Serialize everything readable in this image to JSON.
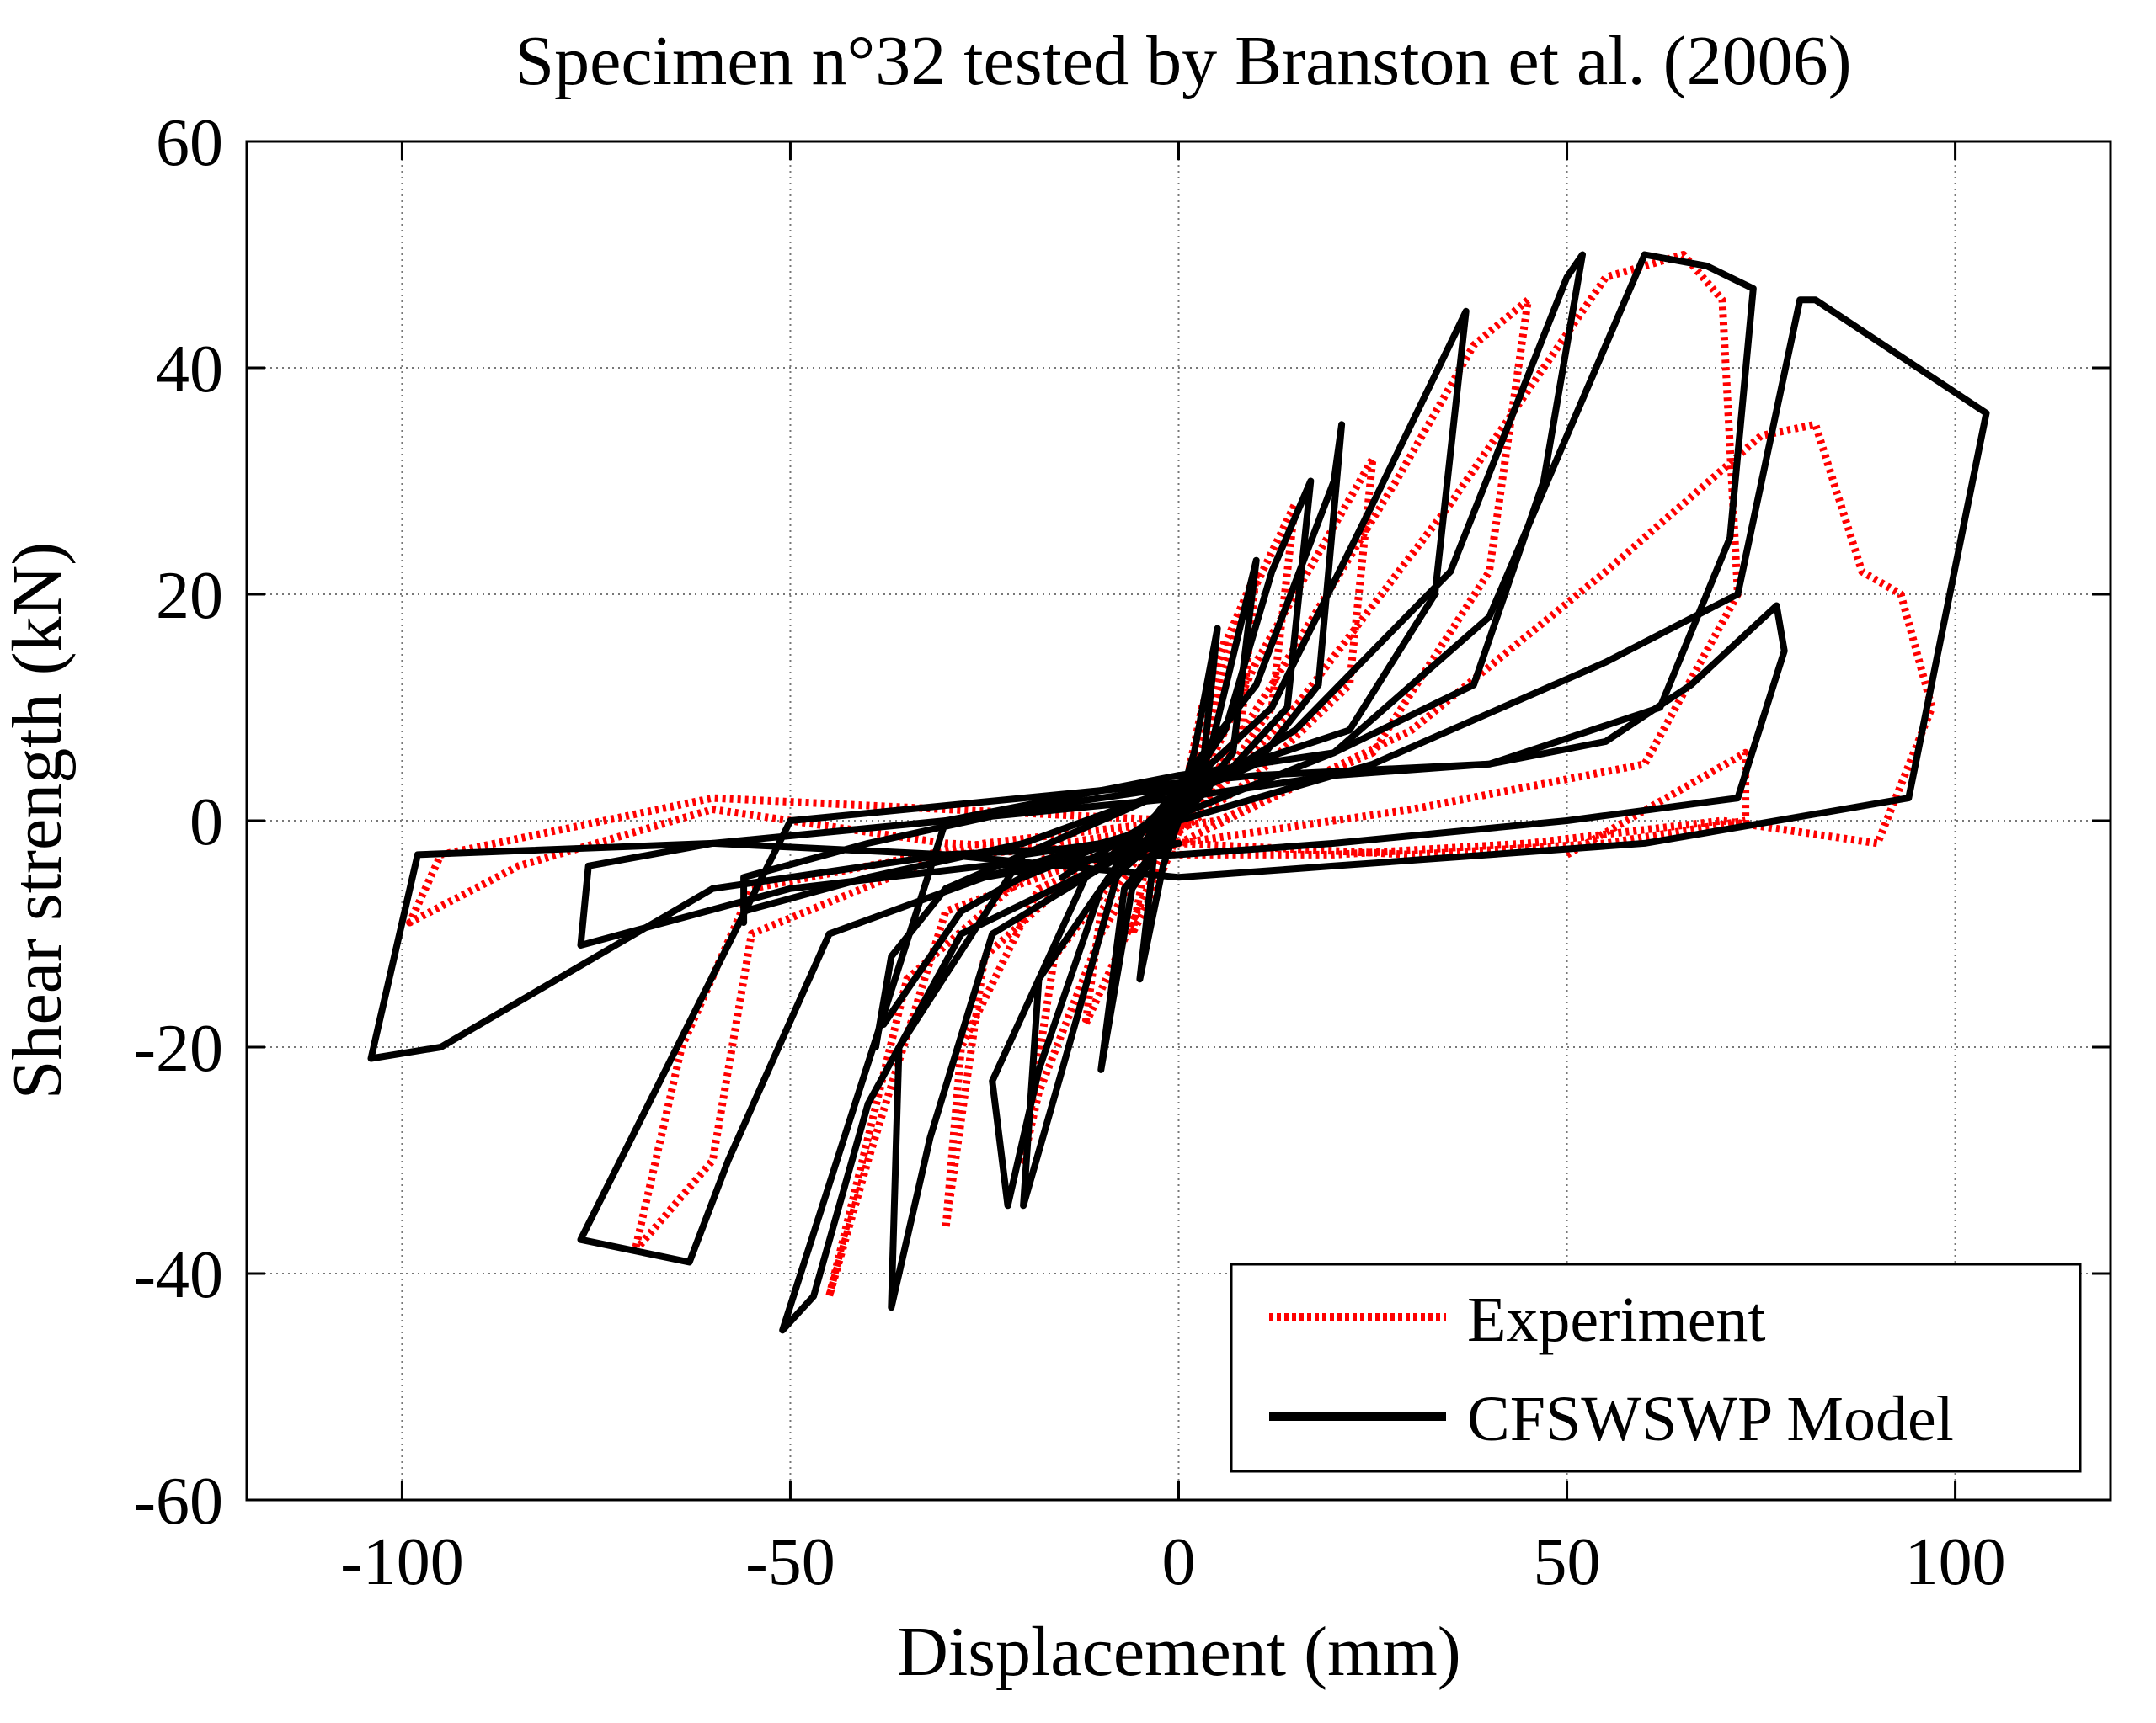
{
  "chart_data": {
    "type": "line",
    "title": "Specimen n°32 tested by Branston et al. (2006)",
    "xlabel": "Displacement (mm)",
    "ylabel": "Shear strength (kN)",
    "xlim": [
      -120,
      120
    ],
    "ylim": [
      -60,
      60
    ],
    "xticks": [
      -100,
      -50,
      0,
      50,
      100
    ],
    "yticks": [
      -60,
      -40,
      -20,
      0,
      20,
      40,
      60
    ],
    "xtick_labels": [
      "-100",
      "-50",
      "0",
      "50",
      "100"
    ],
    "ytick_labels": [
      "-60",
      "-40",
      "-20",
      "0",
      "20",
      "40",
      "60"
    ],
    "grid": true,
    "legend_position": "bottom-right",
    "series": [
      {
        "name": "Experiment",
        "color": "#ff0000",
        "style": "dotted",
        "loops": [
          [
            [
              0,
              0
            ],
            [
              3,
              10
            ],
            [
              6,
              16
            ],
            [
              4,
              6
            ],
            [
              0,
              -1
            ],
            [
              -3,
              -6
            ],
            [
              -6,
              -10
            ],
            [
              -4,
              -3
            ],
            [
              0,
              1
            ],
            [
              3,
              6
            ]
          ],
          [
            [
              0,
              0
            ],
            [
              5,
              14
            ],
            [
              10,
              22
            ],
            [
              8,
              8
            ],
            [
              3,
              2
            ],
            [
              -2,
              -3
            ],
            [
              -8,
              -12
            ],
            [
              -12,
              -18
            ],
            [
              -10,
              -8
            ],
            [
              -4,
              -2
            ],
            [
              0,
              1
            ]
          ],
          [
            [
              0,
              0
            ],
            [
              8,
              18
            ],
            [
              15,
              28
            ],
            [
              12,
              10
            ],
            [
              5,
              3
            ],
            [
              -3,
              -2
            ],
            [
              -10,
              -10
            ],
            [
              -18,
              -24
            ],
            [
              -20,
              -30
            ],
            [
              -16,
              -12
            ],
            [
              -6,
              -3
            ],
            [
              0,
              0
            ]
          ],
          [
            [
              0,
              -1
            ],
            [
              10,
              14
            ],
            [
              20,
              26
            ],
            [
              25,
              32
            ],
            [
              22,
              12
            ],
            [
              10,
              4
            ],
            [
              0,
              -1
            ],
            [
              -12,
              -4
            ],
            [
              -25,
              -12
            ],
            [
              -30,
              -36
            ],
            [
              -28,
              -20
            ],
            [
              -18,
              -6
            ],
            [
              -5,
              -2
            ],
            [
              2,
              0
            ]
          ],
          [
            [
              0,
              -1
            ],
            [
              12,
              12
            ],
            [
              28,
              30
            ],
            [
              38,
              42
            ],
            [
              45,
              46
            ],
            [
              40,
              22
            ],
            [
              25,
              6
            ],
            [
              5,
              0
            ],
            [
              -15,
              -2
            ],
            [
              -35,
              -14
            ],
            [
              -45,
              -42
            ],
            [
              -40,
              -30
            ],
            [
              -30,
              -8
            ],
            [
              -10,
              -3
            ],
            [
              2,
              0
            ]
          ],
          [
            [
              0,
              -1
            ],
            [
              15,
              10
            ],
            [
              35,
              28
            ],
            [
              55,
              48
            ],
            [
              65,
              50
            ],
            [
              70,
              46
            ],
            [
              72,
              20
            ],
            [
              60,
              5
            ],
            [
              30,
              1
            ],
            [
              0,
              -2
            ],
            [
              -30,
              -3
            ],
            [
              -55,
              -10
            ],
            [
              -60,
              -30
            ],
            [
              -70,
              -38
            ],
            [
              -64,
              -20
            ],
            [
              -55,
              -6
            ],
            [
              -25,
              -2
            ],
            [
              0,
              0
            ]
          ],
          [
            [
              0,
              -2
            ],
            [
              30,
              8
            ],
            [
              55,
              22
            ],
            [
              75,
              34
            ],
            [
              82,
              35
            ],
            [
              88,
              22
            ],
            [
              93,
              20
            ],
            [
              97,
              10
            ],
            [
              90,
              -2
            ],
            [
              70,
              0
            ],
            [
              45,
              -2
            ],
            [
              20,
              -3
            ],
            [
              0,
              -3
            ],
            [
              -30,
              -2
            ],
            [
              -60,
              1
            ],
            [
              -85,
              -4
            ],
            [
              -99,
              -9
            ],
            [
              -95,
              -3
            ],
            [
              -60,
              2
            ],
            [
              -30,
              1
            ],
            [
              0,
              0
            ]
          ],
          [
            [
              50,
              -3
            ],
            [
              73,
              6
            ],
            [
              73,
              0
            ],
            [
              55,
              -2
            ],
            [
              30,
              -3
            ],
            [
              0,
              -2
            ]
          ]
        ]
      },
      {
        "name": "CFSWSWP Model",
        "color": "#000000",
        "style": "solid",
        "loops": [
          [
            [
              -2,
              -3
            ],
            [
              2,
              6
            ],
            [
              5,
              17
            ],
            [
              3,
              4
            ],
            [
              0,
              0
            ],
            [
              -2,
              -4
            ],
            [
              -5,
              -14
            ],
            [
              -3,
              -2
            ],
            [
              0,
              1
            ],
            [
              2,
              4
            ]
          ],
          [
            [
              -3,
              -3
            ],
            [
              4,
              6
            ],
            [
              10,
              23
            ],
            [
              7,
              6
            ],
            [
              0,
              0
            ],
            [
              -6,
              -6
            ],
            [
              -10,
              -22
            ],
            [
              -7,
              -6
            ],
            [
              0,
              0
            ],
            [
              4,
              3
            ]
          ],
          [
            [
              -5,
              -3
            ],
            [
              6,
              8
            ],
            [
              12,
              22
            ],
            [
              17,
              30
            ],
            [
              14,
              10
            ],
            [
              6,
              4
            ],
            [
              0,
              2
            ],
            [
              -8,
              -5
            ],
            [
              -15,
              -22
            ],
            [
              -20,
              -34
            ],
            [
              -18,
              -14
            ],
            [
              -8,
              -4
            ],
            [
              0,
              0
            ]
          ],
          [
            [
              -8,
              -4
            ],
            [
              10,
              12
            ],
            [
              20,
              30
            ],
            [
              21,
              35
            ],
            [
              18,
              12
            ],
            [
              10,
              5
            ],
            [
              0,
              2
            ],
            [
              -12,
              -5
            ],
            [
              -24,
              -23
            ],
            [
              -22,
              -34
            ],
            [
              -18,
              -22
            ],
            [
              -10,
              -6
            ],
            [
              0,
              0
            ]
          ],
          [
            [
              -10,
              -4
            ],
            [
              12,
              10
            ],
            [
              25,
              28
            ],
            [
              37,
              45
            ],
            [
              33,
              20
            ],
            [
              22,
              8
            ],
            [
              0,
              3
            ],
            [
              -20,
              -3
            ],
            [
              -36,
              -20
            ],
            [
              -37,
              -43
            ],
            [
              -32,
              -28
            ],
            [
              -24,
              -10
            ],
            [
              0,
              0
            ]
          ],
          [
            [
              -15,
              -5
            ],
            [
              15,
              8
            ],
            [
              35,
              22
            ],
            [
              50,
              48
            ],
            [
              52,
              50
            ],
            [
              47,
              30
            ],
            [
              38,
              12
            ],
            [
              20,
              6
            ],
            [
              0,
              4
            ],
            [
              -30,
              0
            ],
            [
              -51,
              -45
            ],
            [
              -47,
              -42
            ],
            [
              -40,
              -25
            ],
            [
              -28,
              -10
            ],
            [
              -10,
              -4
            ],
            [
              0,
              0
            ]
          ],
          [
            [
              -20,
              -5
            ],
            [
              20,
              6
            ],
            [
              40,
              18
            ],
            [
              60,
              50
            ],
            [
              68,
              49
            ],
            [
              74,
              47
            ],
            [
              71,
              25
            ],
            [
              62,
              10
            ],
            [
              40,
              5
            ],
            [
              10,
              4
            ],
            [
              -20,
              2
            ],
            [
              -50,
              0
            ],
            [
              -77,
              -37
            ],
            [
              -70,
              -38
            ],
            [
              -63,
              -39
            ],
            [
              -58,
              -30
            ],
            [
              -45,
              -10
            ],
            [
              -25,
              -5
            ],
            [
              0,
              -2
            ]
          ],
          [
            [
              -30,
              -6
            ],
            [
              25,
              5
            ],
            [
              55,
              14
            ],
            [
              72,
              20
            ],
            [
              80,
              46
            ],
            [
              82,
              46
            ],
            [
              104,
              36
            ],
            [
              94,
              2
            ],
            [
              60,
              -2
            ],
            [
              20,
              -4
            ],
            [
              0,
              -5
            ],
            [
              -30,
              -3
            ],
            [
              -60,
              -2
            ],
            [
              -98,
              -3
            ],
            [
              -104,
              -21
            ],
            [
              -95,
              -20
            ],
            [
              -80,
              -14
            ],
            [
              -60,
              -6
            ],
            [
              -30,
              -3
            ],
            [
              0,
              -2
            ]
          ],
          [
            [
              0,
              2
            ],
            [
              20,
              4
            ],
            [
              40,
              5
            ],
            [
              55,
              7
            ],
            [
              66,
              12
            ],
            [
              77,
              19
            ],
            [
              78,
              15
            ],
            [
              72,
              2
            ],
            [
              50,
              0
            ],
            [
              20,
              -2
            ],
            [
              0,
              -3
            ],
            [
              -25,
              -4
            ],
            [
              -50,
              -6
            ],
            [
              -77,
              -11
            ],
            [
              -76,
              -4
            ],
            [
              -60,
              -2
            ],
            [
              -30,
              0
            ],
            [
              0,
              2
            ]
          ],
          [
            [
              -56,
              -9
            ],
            [
              -56,
              -5
            ],
            [
              -40,
              -2
            ],
            [
              -20,
              1
            ],
            [
              0,
              3
            ],
            [
              -20,
              -2
            ],
            [
              -40,
              -5
            ],
            [
              -56,
              -8
            ]
          ],
          [
            [
              -39,
              -20
            ],
            [
              -37,
              -12
            ],
            [
              -30,
              -6
            ],
            [
              -20,
              -3
            ],
            [
              -10,
              -2
            ],
            [
              0,
              0
            ],
            [
              -15,
              -3
            ],
            [
              -28,
              -8
            ],
            [
              -38,
              -18
            ]
          ]
        ]
      }
    ]
  }
}
